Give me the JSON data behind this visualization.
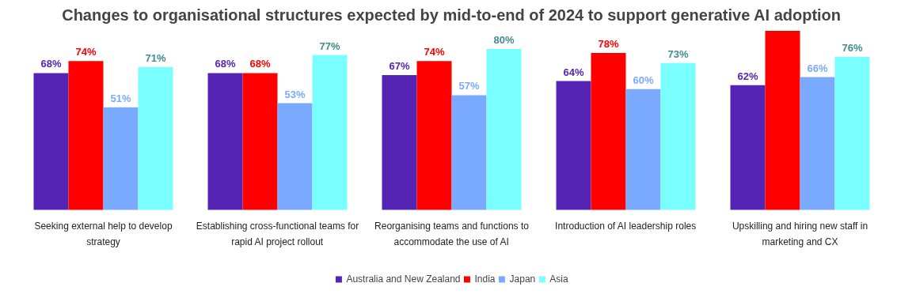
{
  "chart_data": {
    "type": "bar",
    "title": "Changes to organisational structures expected by mid-to-end of 2024 to support generative AI adoption",
    "categories": [
      "Seeking external help to develop strategy",
      "Establishing cross-functional teams for rapid AI project rollout",
      "Reorganising teams and functions to accommodate the use of AI",
      "Introduction of AI leadership roles",
      "Upskilling and hiring new staff in marketing and CX"
    ],
    "series": [
      {
        "name": "Australia and New Zealand",
        "color": "#5524b4",
        "values": [
          68,
          68,
          67,
          64,
          62
        ],
        "value_labels": [
          "68%",
          "68%",
          "67%",
          "64%",
          "62%"
        ]
      },
      {
        "name": "India",
        "color": "#ff0000",
        "values": [
          74,
          68,
          74,
          78,
          89
        ],
        "value_labels": [
          "74%",
          "68%",
          "74%",
          "78%",
          null
        ]
      },
      {
        "name": "Japan",
        "color": "#7aaaff",
        "values": [
          51,
          53,
          57,
          60,
          66
        ],
        "value_labels": [
          "51%",
          "53%",
          "57%",
          "60%",
          "66%"
        ]
      },
      {
        "name": "Asia",
        "color": "#7affff",
        "values": [
          71,
          77,
          80,
          73,
          76
        ],
        "value_labels": [
          "71%",
          "77%",
          "80%",
          "73%",
          "76%"
        ]
      }
    ],
    "legend": "bottom"
  }
}
